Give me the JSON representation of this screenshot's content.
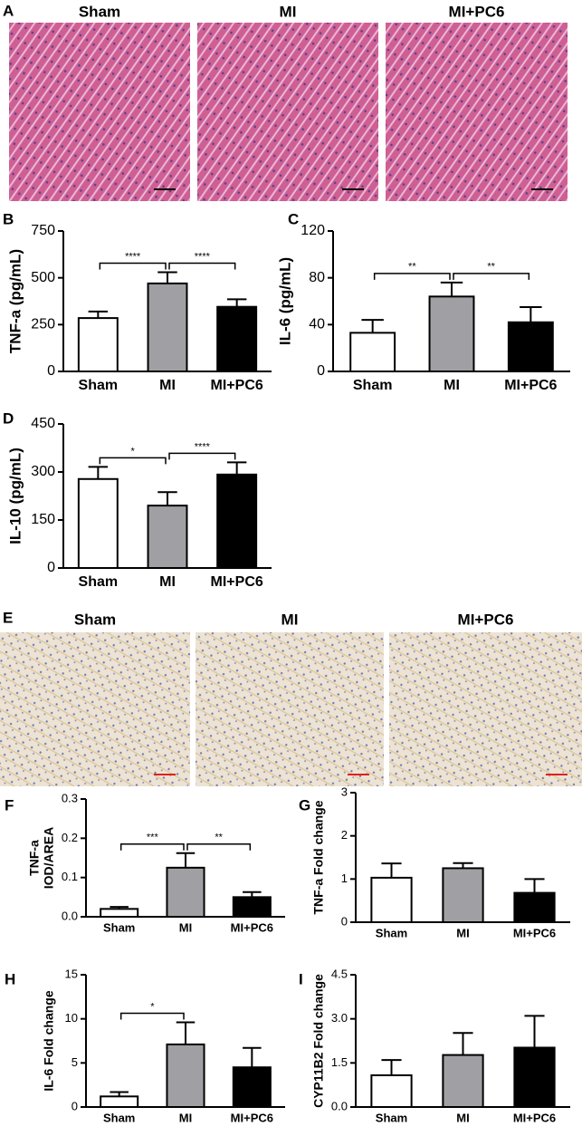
{
  "histology": [
    {
      "label": "A",
      "titles": [
        "Sham",
        "MI",
        "MI+PC6"
      ]
    },
    {
      "label": "E",
      "titles": [
        "Sham",
        "MI",
        "MI+PC6"
      ]
    }
  ],
  "chart_data": [
    {
      "label": "B",
      "type": "bar",
      "ylabel": [
        "TNF-a (pg/mL)"
      ],
      "categories": [
        "Sham",
        "MI",
        "MI+PC6"
      ],
      "values": [
        285,
        470,
        345
      ],
      "errors": [
        35,
        60,
        40
      ],
      "colors": [
        "#ffffff",
        "#a0a0a4",
        "#000000"
      ],
      "ylim": [
        0,
        750
      ],
      "yticks": [
        0,
        250,
        500,
        750
      ],
      "significance": [
        {
          "between": [
            "Sham",
            "MI"
          ],
          "label": "****"
        },
        {
          "between": [
            "MI",
            "MI+PC6"
          ],
          "label": "****"
        }
      ]
    },
    {
      "label": "C",
      "type": "bar",
      "ylabel": [
        "IL-6 (pg/mL)"
      ],
      "categories": [
        "Sham",
        "MI",
        "MI+PC6"
      ],
      "values": [
        33,
        64,
        42
      ],
      "errors": [
        11,
        12,
        13
      ],
      "colors": [
        "#ffffff",
        "#a0a0a4",
        "#000000"
      ],
      "ylim": [
        0,
        120
      ],
      "yticks": [
        0,
        40,
        80,
        120
      ],
      "significance": [
        {
          "between": [
            "Sham",
            "MI"
          ],
          "label": "**"
        },
        {
          "between": [
            "MI",
            "MI+PC6"
          ],
          "label": "**"
        }
      ]
    },
    {
      "label": "D",
      "type": "bar",
      "ylabel": [
        "IL-10 (pg/mL)"
      ],
      "categories": [
        "Sham",
        "MI",
        "MI+PC6"
      ],
      "values": [
        278,
        195,
        292
      ],
      "errors": [
        38,
        42,
        38
      ],
      "colors": [
        "#ffffff",
        "#a0a0a4",
        "#000000"
      ],
      "ylim": [
        0,
        450
      ],
      "yticks": [
        0,
        150,
        300,
        450
      ],
      "significance": [
        {
          "between": [
            "Sham",
            "MI"
          ],
          "label": "*"
        },
        {
          "between": [
            "MI",
            "MI+PC6"
          ],
          "label": "****"
        }
      ]
    },
    {
      "label": "F",
      "type": "bar",
      "ylabel": [
        "TNF-a",
        "IOD/AREA"
      ],
      "categories": [
        "Sham",
        "MI",
        "MI+PC6"
      ],
      "values": [
        0.02,
        0.125,
        0.05
      ],
      "errors": [
        0.005,
        0.037,
        0.013
      ],
      "colors": [
        "#ffffff",
        "#a0a0a4",
        "#000000"
      ],
      "ylim": [
        0,
        0.3
      ],
      "yticks": [
        {
          "value": 0,
          "label": "0.0"
        },
        0.1,
        0.2,
        0.3
      ],
      "significance": [
        {
          "between": [
            "Sham",
            "MI"
          ],
          "label": "***"
        },
        {
          "between": [
            "MI",
            "MI+PC6"
          ],
          "label": "**"
        }
      ]
    },
    {
      "label": "G",
      "type": "bar",
      "ylabel": [
        "TNF-a Fold change"
      ],
      "categories": [
        "Sham",
        "MI",
        "MI+PC6"
      ],
      "values": [
        1.03,
        1.25,
        0.68
      ],
      "errors": [
        0.33,
        0.12,
        0.32
      ],
      "colors": [
        "#ffffff",
        "#a0a0a4",
        "#000000"
      ],
      "ylim": [
        0,
        3
      ],
      "yticks": [
        0,
        1,
        2,
        3
      ],
      "significance": []
    },
    {
      "label": "H",
      "type": "bar",
      "ylabel": [
        "IL-6 Fold change"
      ],
      "categories": [
        "Sham",
        "MI",
        "MI+PC6"
      ],
      "values": [
        1.2,
        7.1,
        4.5
      ],
      "errors": [
        0.5,
        2.5,
        2.2
      ],
      "colors": [
        "#ffffff",
        "#a0a0a4",
        "#000000"
      ],
      "ylim": [
        0,
        15
      ],
      "yticks": [
        0,
        5,
        10,
        15
      ],
      "significance": [
        {
          "between": [
            "Sham",
            "MI"
          ],
          "label": "*"
        }
      ]
    },
    {
      "label": "I",
      "type": "bar",
      "ylabel": [
        "CYP11B2 Fold change"
      ],
      "categories": [
        "Sham",
        "MI",
        "MI+PC6"
      ],
      "values": [
        1.08,
        1.77,
        2.02
      ],
      "errors": [
        0.52,
        0.75,
        1.08
      ],
      "colors": [
        "#ffffff",
        "#a0a0a4",
        "#000000"
      ],
      "ylim": [
        0,
        4.5
      ],
      "yticks": [
        {
          "value": 0,
          "label": "0.0"
        },
        1.5,
        {
          "value": 3,
          "label": "3.0"
        },
        4.5
      ],
      "significance": []
    }
  ]
}
